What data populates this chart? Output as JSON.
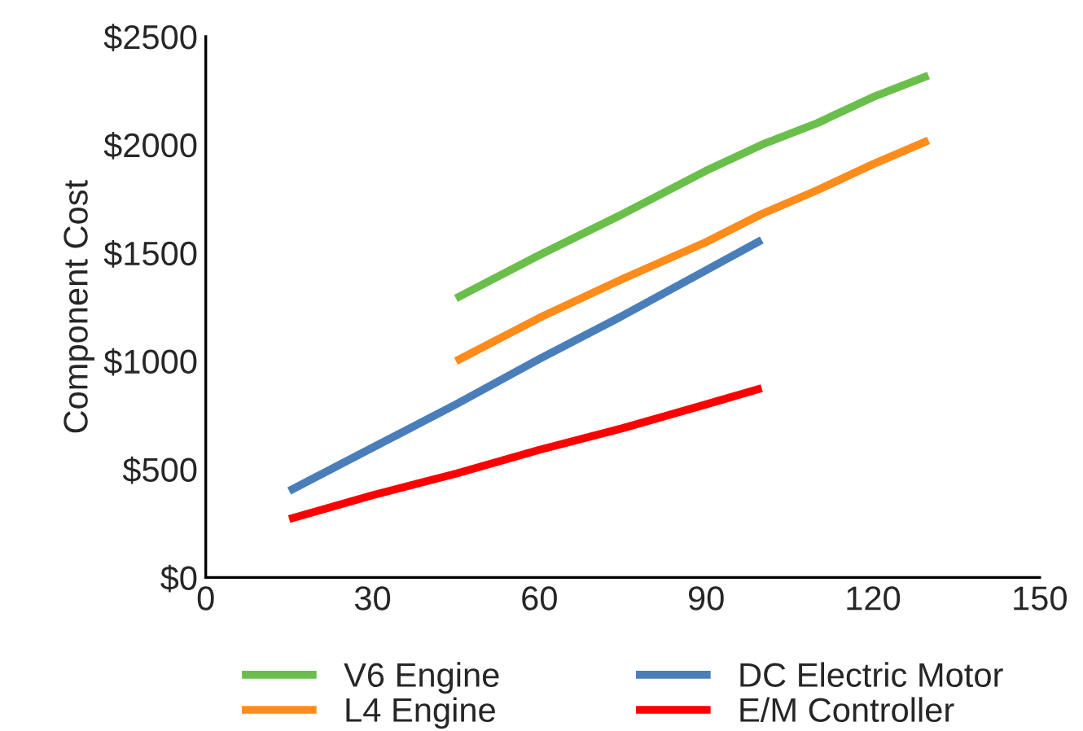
{
  "chart_data": {
    "type": "line",
    "ylabel": "Component Cost",
    "series": [
      {
        "name": "V6 Engine",
        "color": "#6abf4b",
        "x": [
          45,
          60,
          75,
          90,
          100,
          110,
          120,
          130
        ],
        "values": [
          1290,
          1490,
          1680,
          1880,
          2000,
          2100,
          2220,
          2320
        ]
      },
      {
        "name": "DC Electric Motor",
        "color": "#4a7ebb",
        "x": [
          15,
          30,
          45,
          60,
          75,
          90,
          100
        ],
        "values": [
          400,
          600,
          800,
          1010,
          1210,
          1420,
          1560
        ]
      },
      {
        "name": "L4 Engine",
        "color": "#ff8c1a",
        "x": [
          45,
          60,
          75,
          90,
          100,
          110,
          120,
          130
        ],
        "values": [
          1000,
          1200,
          1380,
          1550,
          1680,
          1790,
          1910,
          2020
        ]
      },
      {
        "name": "E/M Controller",
        "color": "#ff0000",
        "x": [
          15,
          30,
          45,
          60,
          75,
          90,
          100
        ],
        "values": [
          270,
          380,
          480,
          590,
          690,
          800,
          875
        ]
      }
    ],
    "xlim": [
      0,
      150
    ],
    "xticks": [
      0,
      30,
      60,
      90,
      120,
      150
    ],
    "ylim": [
      0,
      2500
    ],
    "yticks": [
      {
        "value": 0,
        "label": "$0"
      },
      {
        "value": 500,
        "label": "$500"
      },
      {
        "value": 1000,
        "label": "$1000"
      },
      {
        "value": 1500,
        "label": "$1500"
      },
      {
        "value": 2000,
        "label": "$2000"
      },
      {
        "value": 2500,
        "label": "$2500"
      }
    ],
    "legend": "bottom",
    "grid": false,
    "line_style": "solid"
  }
}
